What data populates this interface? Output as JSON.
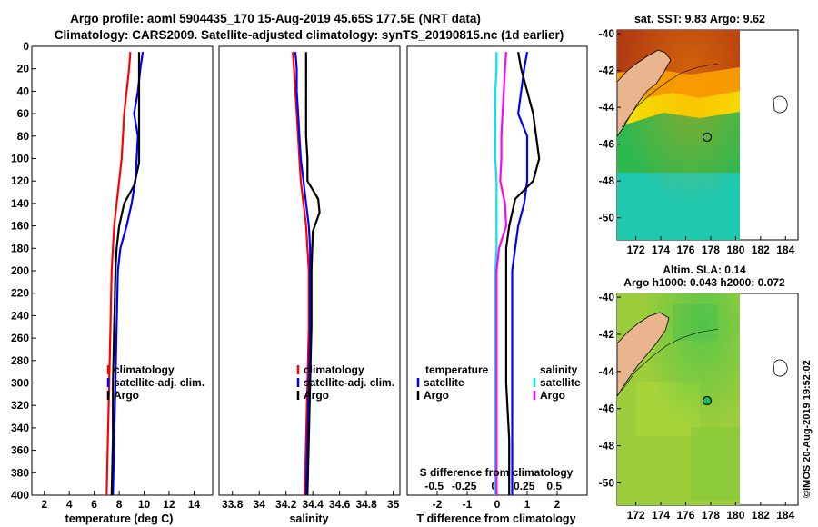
{
  "header": {
    "title_line1": "Argo profile: aoml 5904435_170 15-Aug-2019 45.65S 177.5E (NRT data)",
    "title_line2": "Climatology: CARS2009. Satellite-adjusted climatology: synTS_20190815.nc (1d earlier)"
  },
  "colors": {
    "climatology": "#ff0000",
    "satellite_adj": "#0000ff",
    "argo": "#000000",
    "sat_sal": "#00e5ee",
    "argo_sal": "#ff00ff"
  },
  "chart_data": [
    {
      "type": "line",
      "id": "temperature",
      "xlabel": "temperature (deg C)",
      "ylabel": "",
      "xlim": [
        1,
        15.5
      ],
      "ylim": [
        400,
        0
      ],
      "xticks": [
        2,
        4,
        6,
        8,
        10,
        12,
        14
      ],
      "yticks": [
        0,
        20,
        40,
        60,
        80,
        100,
        120,
        140,
        160,
        180,
        200,
        220,
        240,
        260,
        280,
        300,
        320,
        340,
        360,
        380,
        400
      ],
      "legend": [
        "climatology",
        "satellite-adj. clim.",
        "Argo"
      ],
      "series": [
        {
          "name": "climatology",
          "color": "#ff0000",
          "x": [
            8.9,
            8.8,
            8.6,
            8.4,
            8.3,
            8.2,
            8.0,
            7.8,
            7.6,
            7.5,
            7.4,
            7.3,
            7.2,
            7.1,
            7.0
          ],
          "y": [
            5,
            20,
            40,
            60,
            80,
            100,
            120,
            140,
            160,
            180,
            200,
            250,
            300,
            350,
            400
          ]
        },
        {
          "name": "satellite-adj. clim.",
          "color": "#0000ff",
          "x": [
            9.9,
            9.7,
            9.5,
            9.2,
            9.5,
            9.4,
            9.3,
            9.0,
            8.6,
            8.1,
            7.9,
            7.8,
            7.7,
            7.6,
            7.5
          ],
          "y": [
            5,
            20,
            40,
            60,
            80,
            100,
            120,
            140,
            160,
            180,
            200,
            250,
            300,
            350,
            400
          ]
        },
        {
          "name": "Argo",
          "color": "#000000",
          "x": [
            9.6,
            9.6,
            9.6,
            9.6,
            9.6,
            9.6,
            9.2,
            8.4,
            8.0,
            7.8,
            7.7,
            7.6,
            7.5,
            7.5,
            7.4
          ],
          "y": [
            5,
            20,
            40,
            60,
            80,
            104,
            124,
            140,
            160,
            180,
            200,
            250,
            300,
            350,
            400
          ]
        }
      ]
    },
    {
      "type": "line",
      "id": "salinity",
      "xlabel": "salinity",
      "xlim": [
        33.7,
        35.05
      ],
      "ylim": [
        400,
        0
      ],
      "xticks": [
        33.8,
        34,
        34.2,
        34.4,
        34.6,
        34.8,
        35
      ],
      "xticklabels": [
        "33.8",
        "34",
        "34.2",
        "34.4",
        "34.6",
        "34.8",
        "35"
      ],
      "legend": [
        "climatology",
        "satellite-adj. clim.",
        "Argo"
      ],
      "series": [
        {
          "name": "climatology",
          "color": "#ff0000",
          "x": [
            34.25,
            34.26,
            34.27,
            34.28,
            34.29,
            34.3,
            34.31,
            34.33,
            34.35,
            34.36,
            34.37,
            34.37,
            34.36,
            34.35,
            34.34
          ],
          "y": [
            5,
            20,
            40,
            60,
            80,
            100,
            120,
            140,
            160,
            180,
            200,
            250,
            300,
            350,
            400
          ]
        },
        {
          "name": "satellite-adj. clim.",
          "color": "#0000ff",
          "x": [
            34.27,
            34.28,
            34.28,
            34.29,
            34.3,
            34.31,
            34.33,
            34.35,
            34.37,
            34.38,
            34.38,
            34.38,
            34.37,
            34.36,
            34.35
          ],
          "y": [
            5,
            20,
            40,
            60,
            80,
            100,
            120,
            140,
            160,
            180,
            200,
            250,
            300,
            350,
            400
          ]
        },
        {
          "name": "Argo",
          "color": "#000000",
          "x": [
            34.35,
            34.35,
            34.35,
            34.35,
            34.35,
            34.36,
            34.36,
            34.44,
            34.45,
            34.4,
            34.39,
            34.39,
            34.38,
            34.37,
            34.36
          ],
          "y": [
            5,
            20,
            40,
            60,
            80,
            100,
            120,
            136,
            148,
            165,
            200,
            250,
            300,
            350,
            400
          ]
        }
      ]
    },
    {
      "type": "line",
      "id": "difference",
      "xlabel": "T difference from climatology",
      "xlabel_top": "S difference from climatology",
      "xlim": [
        -3,
        3
      ],
      "ylim": [
        400,
        0
      ],
      "xticks": [
        -2,
        -1,
        0,
        1,
        2
      ],
      "xticklabels": [
        "-2",
        "-1",
        "0",
        "1",
        "2"
      ],
      "xticks_sal": [
        -0.5,
        -0.25,
        0,
        0.25,
        0.5
      ],
      "xticklabels_sal": [
        "-0.5",
        "-0.25",
        "0",
        "0.25",
        "0.5"
      ],
      "legend_temperature_title": "temperature",
      "legend_salinity_title": "salinity",
      "legend_temperature": [
        "satellite",
        "Argo"
      ],
      "legend_salinity": [
        "satellite",
        "Argo"
      ],
      "series": [
        {
          "name": "T satellite",
          "color": "#0000ff",
          "x": [
            1.0,
            0.9,
            0.8,
            0.7,
            1.0,
            1.0,
            1.0,
            0.9,
            0.7,
            0.6,
            0.5,
            0.5,
            0.5,
            0.5,
            0.5
          ],
          "y": [
            5,
            20,
            40,
            60,
            80,
            100,
            120,
            140,
            160,
            180,
            200,
            250,
            300,
            350,
            400
          ]
        },
        {
          "name": "T Argo",
          "color": "#000000",
          "x": [
            0.7,
            0.8,
            1.0,
            1.2,
            1.3,
            1.4,
            1.2,
            0.6,
            0.4,
            0.3,
            0.3,
            0.3,
            0.3,
            0.4,
            0.4
          ],
          "y": [
            5,
            20,
            40,
            60,
            80,
            100,
            120,
            136,
            160,
            180,
            200,
            250,
            300,
            350,
            400
          ]
        },
        {
          "name": "S satellite",
          "color": "#00e5ee",
          "x": [
            0.02,
            0.02,
            0.01,
            0.01,
            0.01,
            0.01,
            0.02,
            0.02,
            0.02,
            0.02,
            0.01,
            0.01,
            0.01,
            0.01,
            0.01
          ],
          "y": [
            5,
            20,
            40,
            60,
            80,
            100,
            120,
            140,
            160,
            180,
            200,
            250,
            300,
            350,
            400
          ]
        },
        {
          "name": "S Argo",
          "color": "#ff00ff",
          "x": [
            0.1,
            0.09,
            0.08,
            0.07,
            0.06,
            0.06,
            0.05,
            0.09,
            0.1,
            0.04,
            0.02,
            0.02,
            0.02,
            0.02,
            0.02
          ],
          "y": [
            5,
            20,
            40,
            60,
            80,
            100,
            120,
            140,
            160,
            180,
            200,
            250,
            300,
            350,
            400
          ]
        }
      ]
    },
    {
      "type": "heatmap",
      "id": "sst_map",
      "title": "sat. SST: 9.83 Argo: 9.62",
      "xlim": [
        170.5,
        185
      ],
      "ylim": [
        -51.2,
        -39.8
      ],
      "xticks": [
        172,
        174,
        176,
        178,
        180,
        182,
        184
      ],
      "yticks": [
        -40,
        -42,
        -44,
        -46,
        -48,
        -50
      ],
      "argo_position": [
        177.5,
        -45.65
      ]
    },
    {
      "type": "heatmap",
      "id": "sla_map",
      "title_line1": "Altim. SLA: 0.14",
      "title_line2": "Argo h1000: 0.043 h2000: 0.072",
      "xlim": [
        170.5,
        185
      ],
      "ylim": [
        -51.2,
        -39.8
      ],
      "xticks": [
        172,
        174,
        176,
        178,
        180,
        182,
        184
      ],
      "yticks": [
        -40,
        -42,
        -44,
        -46,
        -48,
        -50
      ],
      "argo_position": [
        177.5,
        -45.65
      ]
    }
  ],
  "credit": "©IMOS 20-Aug-2019 19:52:02"
}
